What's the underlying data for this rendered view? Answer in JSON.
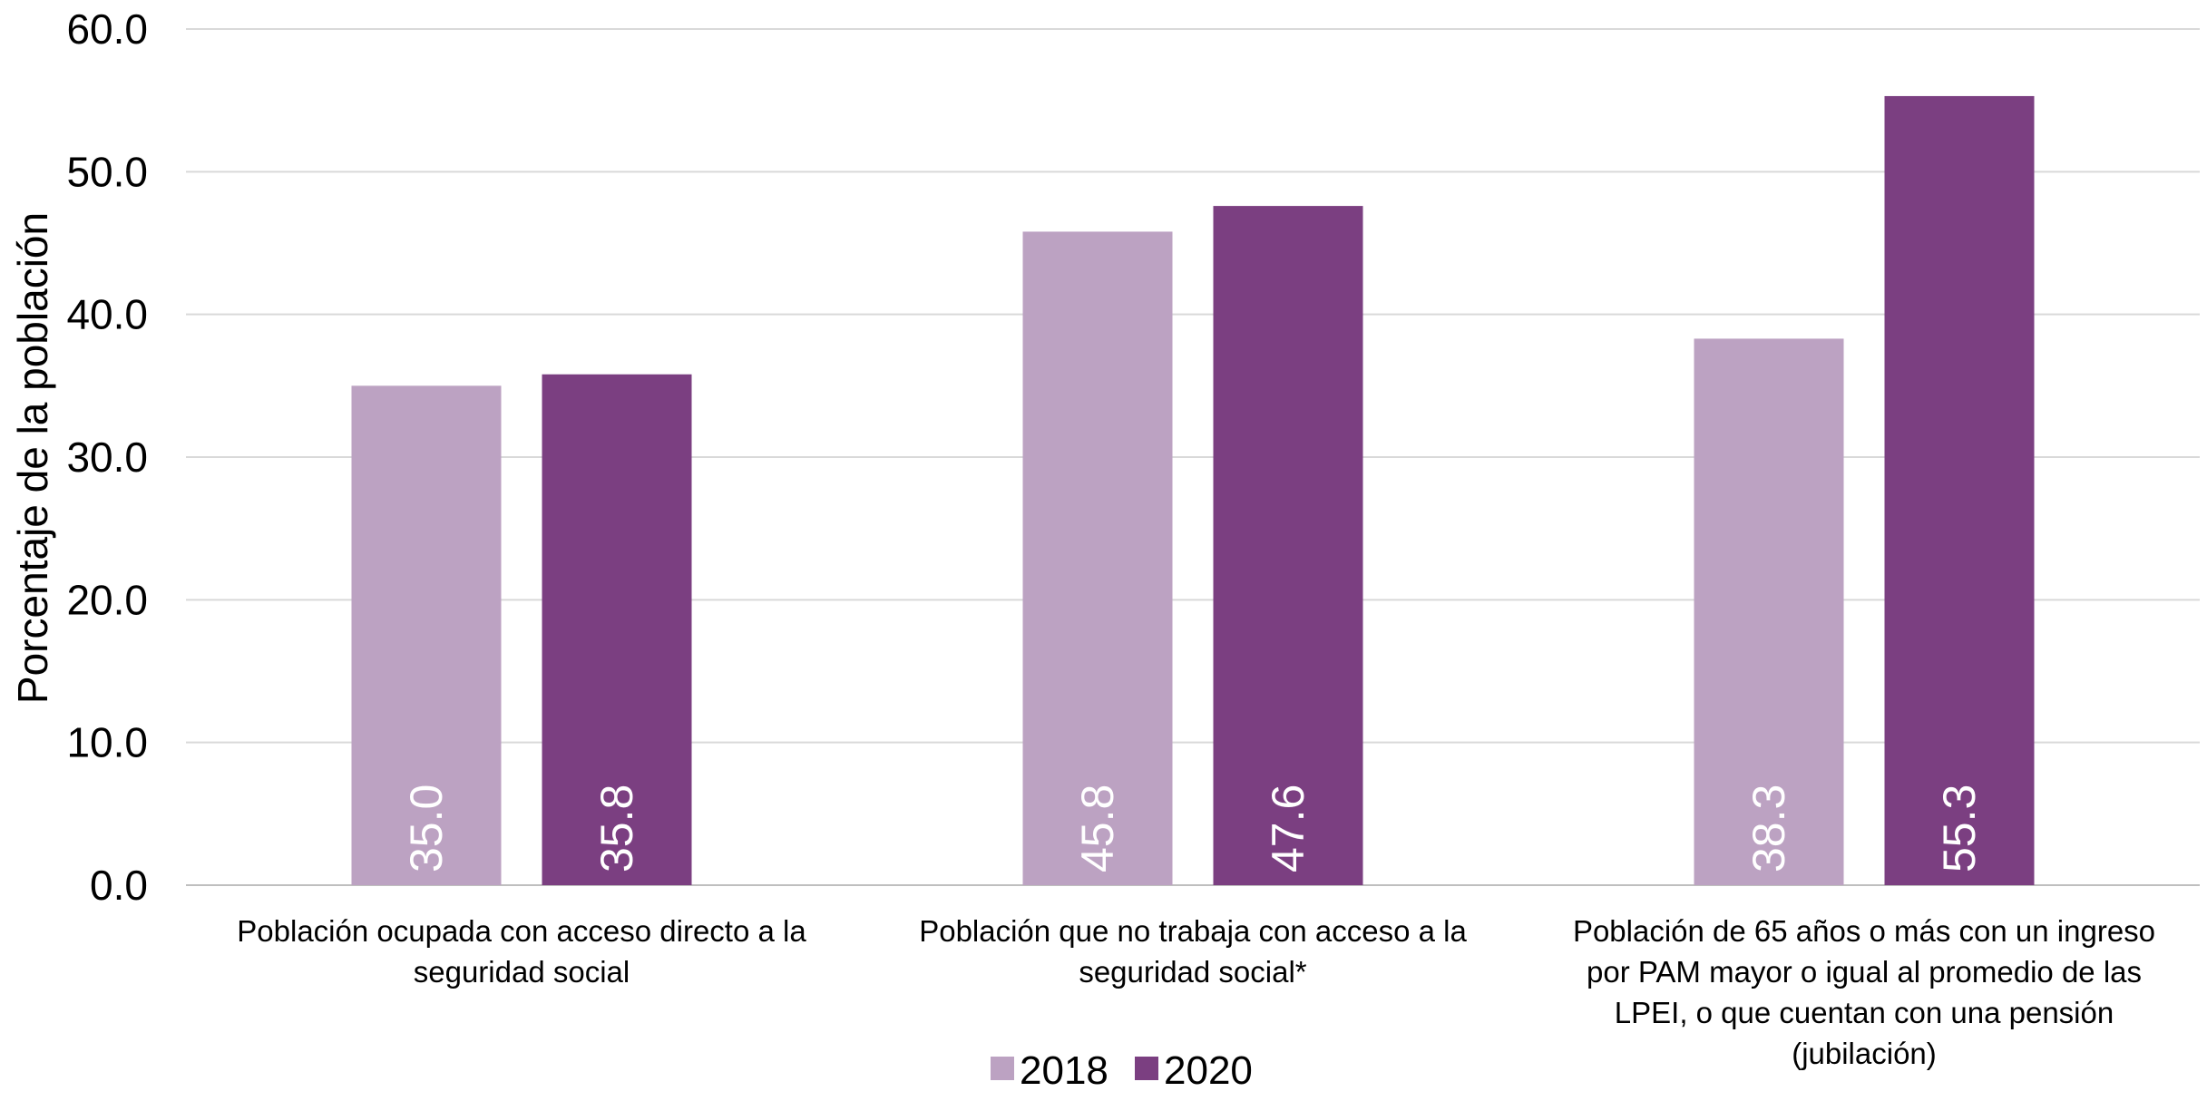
{
  "chart_data": {
    "type": "bar",
    "ylabel": "Porcentaje de la población",
    "xlabel": "",
    "ylim": [
      0,
      60
    ],
    "yticks": [
      "0.0",
      "10.0",
      "20.0",
      "30.0",
      "40.0",
      "50.0",
      "60.0"
    ],
    "categories": [
      [
        "Población ocupada con acceso directo a la",
        "seguridad social"
      ],
      [
        "Población que no trabaja con acceso a la",
        "seguridad social*"
      ],
      [
        "Población de 65 años o más con un ingreso",
        "por PAM mayor o igual al promedio de las",
        "LPEI, o que cuentan con una pensión",
        "(jubilación)"
      ]
    ],
    "series": [
      {
        "name": "2018",
        "color": "#bca2c2",
        "values": [
          35.0,
          45.8,
          38.3
        ],
        "labels": [
          "35.0",
          "45.8",
          "38.3"
        ]
      },
      {
        "name": "2020",
        "color": "#7b3f81",
        "values": [
          35.8,
          47.6,
          55.3
        ],
        "labels": [
          "35.8",
          "47.6",
          "55.3"
        ]
      }
    ],
    "grid": true,
    "legend": "bottom-center",
    "gridline_color": "#d9d9d9"
  }
}
